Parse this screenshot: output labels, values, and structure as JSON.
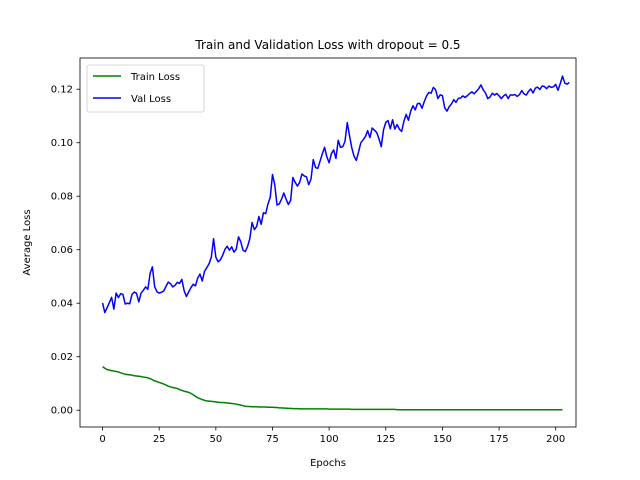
{
  "chart_data": {
    "type": "line",
    "title": "Train and Validation Loss with dropout = 0.5",
    "xlabel": "Epochs",
    "ylabel": "Average Loss",
    "xlim": [
      -9.95,
      208.95
    ],
    "ylim": [
      -0.00627,
      0.13167
    ],
    "xticks": [
      0,
      25,
      50,
      75,
      100,
      125,
      150,
      175,
      200
    ],
    "yticks": [
      0.0,
      0.02,
      0.04,
      0.06,
      0.08,
      0.1,
      0.12
    ],
    "ytick_labels": [
      "0.00",
      "0.02",
      "0.04",
      "0.06",
      "0.08",
      "0.10",
      "0.12"
    ],
    "grid": false,
    "legend_position": "upper-left",
    "series": [
      {
        "name": "Train Loss",
        "color": "#008000",
        "x_start": 0,
        "x_step": 1,
        "values": [
          0.0163,
          0.0157,
          0.0152,
          0.015,
          0.0148,
          0.0146,
          0.0145,
          0.0143,
          0.014,
          0.0137,
          0.0135,
          0.0133,
          0.0132,
          0.0131,
          0.0129,
          0.0128,
          0.0127,
          0.0126,
          0.0124,
          0.0123,
          0.0121,
          0.0118,
          0.0114,
          0.011,
          0.0107,
          0.0104,
          0.0101,
          0.0098,
          0.0094,
          0.009,
          0.0087,
          0.0085,
          0.0083,
          0.0081,
          0.0077,
          0.0074,
          0.0071,
          0.0069,
          0.0067,
          0.0063,
          0.0058,
          0.0052,
          0.0047,
          0.0043,
          0.004,
          0.0037,
          0.0035,
          0.0034,
          0.0033,
          0.0032,
          0.0031,
          0.003,
          0.0029,
          0.0029,
          0.0028,
          0.0027,
          0.0026,
          0.0025,
          0.0024,
          0.0023,
          0.0021,
          0.0019,
          0.0017,
          0.0015,
          0.0014,
          0.0014,
          0.0013,
          0.0013,
          0.0013,
          0.0012,
          0.0012,
          0.0012,
          0.0012,
          0.0011,
          0.0011,
          0.0011,
          0.001,
          0.001,
          0.0009,
          0.0009,
          0.0008,
          0.0008,
          0.0007,
          0.0007,
          0.0006,
          0.0006,
          0.0006,
          0.0005,
          0.0005,
          0.0005,
          0.0005,
          0.0005,
          0.0005,
          0.0005,
          0.0005,
          0.0005,
          0.0005,
          0.0005,
          0.0005,
          0.0005,
          0.0004,
          0.0004,
          0.0004,
          0.0004,
          0.0004,
          0.0004,
          0.0004,
          0.0004,
          0.0004,
          0.0004,
          0.0003,
          0.0003,
          0.0003,
          0.0003,
          0.0003,
          0.0003,
          0.0003,
          0.0003,
          0.0003,
          0.0003,
          0.0003,
          0.0003,
          0.0003,
          0.0003,
          0.0003,
          0.0003,
          0.0003,
          0.0003,
          0.0003,
          0.0003,
          0.0002,
          0.0002,
          0.0002,
          0.0002,
          0.0002,
          0.0002,
          0.0002,
          0.0002,
          0.0002,
          0.0002,
          0.0002,
          0.0002,
          0.0002,
          0.0002,
          0.0002,
          0.0002,
          0.0002,
          0.0002,
          0.0002,
          0.0002,
          0.0002,
          0.0002,
          0.0002,
          0.0002,
          0.0002,
          0.0002,
          0.0002,
          0.0002,
          0.0002,
          0.0002,
          0.0002,
          0.0002,
          0.0002,
          0.0002,
          0.0002,
          0.0002,
          0.0002,
          0.0002,
          0.0002,
          0.0002,
          0.0002,
          0.0002,
          0.0002,
          0.0002,
          0.0002,
          0.0002,
          0.0002,
          0.0002,
          0.0002,
          0.0002,
          0.0002,
          0.0002,
          0.0002,
          0.0002,
          0.0002,
          0.0002,
          0.0002,
          0.0002,
          0.0002,
          0.0002,
          0.0002,
          0.0002,
          0.0002,
          0.0002,
          0.0002,
          0.0002,
          0.0002,
          0.0002,
          0.0002,
          0.0002,
          0.0002,
          0.0002,
          0.0002,
          0.0002
        ]
      },
      {
        "name": "Val Loss",
        "color": "#0000ff",
        "x_start": 0,
        "x_step": 1,
        "values": [
          0.0401,
          0.0365,
          0.0383,
          0.0402,
          0.0422,
          0.0378,
          0.0438,
          0.0421,
          0.0436,
          0.0433,
          0.0397,
          0.04,
          0.0398,
          0.0433,
          0.0442,
          0.0437,
          0.0405,
          0.0438,
          0.0448,
          0.0461,
          0.0452,
          0.0512,
          0.0536,
          0.0462,
          0.0443,
          0.0438,
          0.0441,
          0.0446,
          0.0463,
          0.0479,
          0.0473,
          0.0461,
          0.0467,
          0.0478,
          0.0474,
          0.0489,
          0.0447,
          0.0425,
          0.0442,
          0.0458,
          0.0471,
          0.0465,
          0.0494,
          0.0509,
          0.0483,
          0.0519,
          0.0533,
          0.0547,
          0.0572,
          0.0641,
          0.0572,
          0.0555,
          0.0562,
          0.0579,
          0.0601,
          0.0613,
          0.0598,
          0.0611,
          0.0591,
          0.0602,
          0.0648,
          0.063,
          0.0598,
          0.0593,
          0.0612,
          0.0641,
          0.0702,
          0.0675,
          0.0687,
          0.0724,
          0.0695,
          0.0738,
          0.0735,
          0.0771,
          0.0795,
          0.0881,
          0.0843,
          0.0767,
          0.0771,
          0.0789,
          0.0812,
          0.0789,
          0.0769,
          0.0784,
          0.087,
          0.0852,
          0.0838,
          0.0852,
          0.0883,
          0.0876,
          0.0872,
          0.0843,
          0.0864,
          0.0937,
          0.0907,
          0.0904,
          0.0931,
          0.0959,
          0.0983,
          0.0947,
          0.0925,
          0.0959,
          0.0973,
          0.0941,
          0.1009,
          0.0983,
          0.0985,
          0.1005,
          0.1075,
          0.1026,
          0.0981,
          0.0949,
          0.0934,
          0.0966,
          0.1,
          0.1011,
          0.1023,
          0.1045,
          0.1019,
          0.1055,
          0.1047,
          0.1038,
          0.1015,
          0.0985,
          0.1048,
          0.1076,
          0.1083,
          0.1052,
          0.1086,
          0.1051,
          0.1068,
          0.1051,
          0.1042,
          0.108,
          0.1106,
          0.1084,
          0.1118,
          0.1138,
          0.1123,
          0.1146,
          0.1147,
          0.1129,
          0.1154,
          0.1175,
          0.1188,
          0.1185,
          0.1207,
          0.1198,
          0.1165,
          0.1179,
          0.1176,
          0.1131,
          0.1118,
          0.1135,
          0.1145,
          0.1161,
          0.1151,
          0.1166,
          0.1167,
          0.1175,
          0.1169,
          0.1176,
          0.1184,
          0.119,
          0.1183,
          0.1192,
          0.1202,
          0.1216,
          0.1198,
          0.1186,
          0.1165,
          0.1171,
          0.1185,
          0.1178,
          0.1184,
          0.1175,
          0.1165,
          0.1175,
          0.1181,
          0.1165,
          0.1179,
          0.1178,
          0.118,
          0.1173,
          0.118,
          0.1195,
          0.1183,
          0.1178,
          0.1192,
          0.1201,
          0.1186,
          0.1204,
          0.1208,
          0.1199,
          0.1212,
          0.121,
          0.1202,
          0.1212,
          0.1207,
          0.1209,
          0.1218,
          0.1196,
          0.1221,
          0.1249,
          0.1223,
          0.1219,
          0.1225
        ]
      }
    ]
  }
}
